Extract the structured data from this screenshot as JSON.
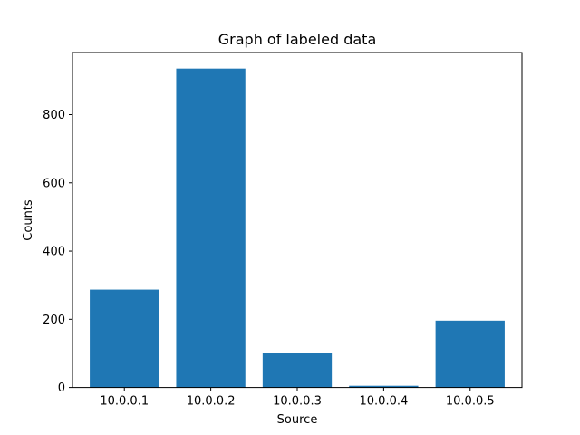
{
  "chart_data": {
    "type": "bar",
    "title": "Graph of labeled data",
    "xlabel": "Source",
    "ylabel": "Counts",
    "categories": [
      "10.0.0.1",
      "10.0.0.2",
      "10.0.0.3",
      "10.0.0.4",
      "10.0.0.5"
    ],
    "values": [
      287,
      935,
      100,
      5,
      196
    ],
    "ylim": [
      0,
      982
    ],
    "yticks": [
      0,
      200,
      400,
      600,
      800
    ],
    "grid": false,
    "bar_color": "#1f77b4"
  }
}
